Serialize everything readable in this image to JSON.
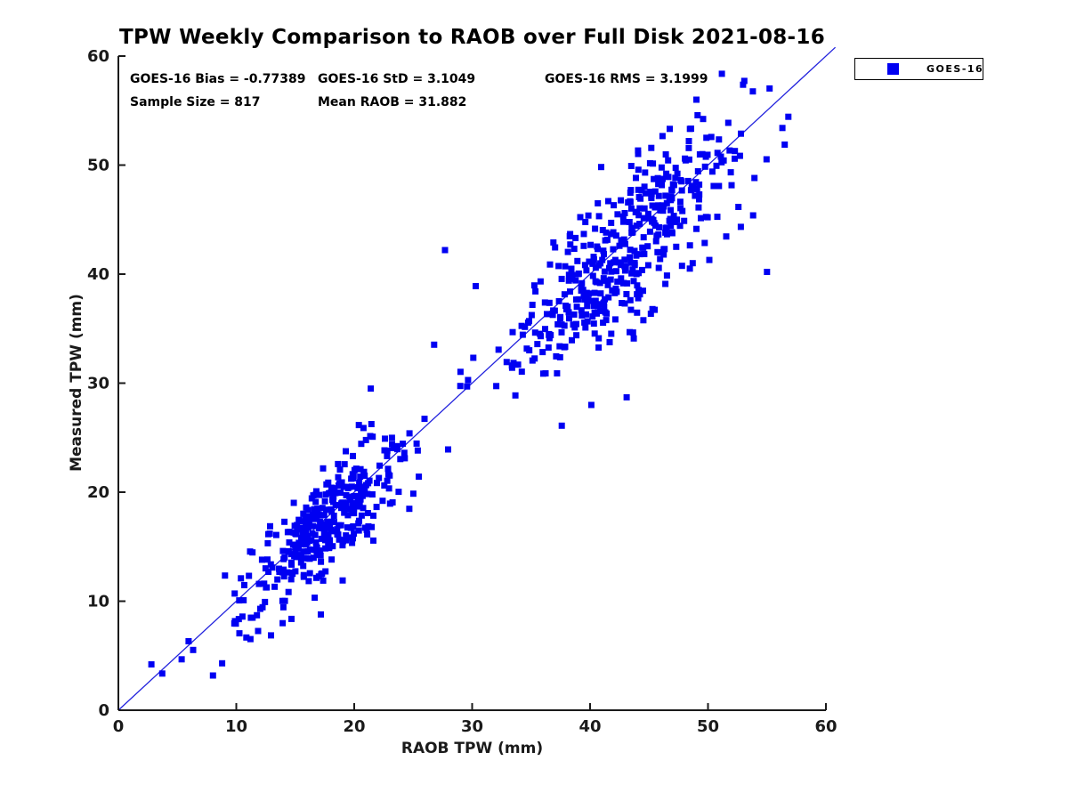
{
  "chart_data": {
    "type": "scatter",
    "title": "TPW Weekly Comparison to RAOB over Full Disk 2021-08-16",
    "xlabel": "RAOB TPW (mm)",
    "ylabel": "Measured TPW (mm)",
    "xlim": [
      0,
      60
    ],
    "ylim": [
      0,
      60
    ],
    "xticks": [
      0,
      10,
      20,
      30,
      40,
      50,
      60
    ],
    "yticks": [
      0,
      10,
      20,
      30,
      40,
      50,
      60
    ],
    "grid": false,
    "axis_color": "#1a1a1a",
    "annotations": {
      "bias": "GOES-16 Bias = -0.77389",
      "std": "GOES-16 StD = 3.1049",
      "rms": "GOES-16 RMS = 3.1999",
      "sample": "Sample Size = 817",
      "mean": "Mean RAOB = 31.882"
    },
    "stats": {
      "bias": -0.77389,
      "std": 3.1049,
      "rms": 3.1999,
      "sample_size": 817,
      "mean_raob": 31.882
    },
    "legend": {
      "position": "outside-top-right",
      "entries": [
        {
          "label": "GOES-16",
          "marker": "square",
          "color": "#0000f2"
        }
      ]
    },
    "reference_line": {
      "type": "identity",
      "from": [
        0,
        0
      ],
      "to": [
        60.8,
        60.8
      ],
      "color": "#2222dd",
      "width": 1.3
    },
    "series": [
      {
        "name": "GOES-16",
        "marker": "square",
        "marker_color": "#0000f2",
        "marker_size_px": 7,
        "point_count": 817,
        "synthesis": {
          "seed": 42,
          "mixture": [
            {
              "weight": 0.4,
              "mean": 17.5,
              "std": 3.4
            },
            {
              "weight": 0.52,
              "mean": 43.3,
              "std": 4.8
            },
            {
              "weight": 0.08,
              "uniform": [
                3,
                57
              ]
            }
          ],
          "bias": -0.77389,
          "noise_std": 3.0,
          "noise_scale": [
            0.55,
            0.9
          ],
          "x_range": [
            2.6,
            57.4
          ],
          "y_range": [
            1.2,
            58.5
          ]
        },
        "explicit_points": [
          [
            27.7,
            42.2
          ],
          [
            30.3,
            38.9
          ],
          [
            55.0,
            40.2
          ],
          [
            43.1,
            28.7
          ],
          [
            37.6,
            26.1
          ],
          [
            21.4,
            29.5
          ],
          [
            2.8,
            4.2
          ],
          [
            8.8,
            4.3
          ]
        ]
      }
    ]
  }
}
